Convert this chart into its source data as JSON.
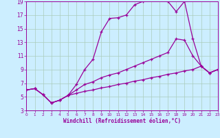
{
  "xlabel": "Windchill (Refroidissement éolien,°C)",
  "bg_color": "#cceeff",
  "grid_color": "#aaccbb",
  "line_color": "#990099",
  "axis_bg": "#9999cc",
  "xmin": 0,
  "xmax": 23,
  "ymin": 3,
  "ymax": 19,
  "yticks": [
    3,
    5,
    7,
    9,
    11,
    13,
    15,
    17,
    19
  ],
  "xticks": [
    0,
    1,
    2,
    3,
    4,
    5,
    6,
    7,
    8,
    9,
    10,
    11,
    12,
    13,
    14,
    15,
    16,
    17,
    18,
    19,
    20,
    21,
    22,
    23
  ],
  "c1x": [
    0,
    1,
    2,
    3,
    4,
    5,
    6,
    7,
    8,
    9,
    10,
    11,
    12,
    13,
    14,
    15,
    16,
    17,
    18,
    19,
    20,
    21,
    22,
    23
  ],
  "c1y": [
    6.0,
    6.2,
    5.3,
    4.1,
    4.5,
    5.2,
    6.8,
    9.0,
    10.5,
    14.5,
    16.5,
    16.6,
    17.0,
    18.5,
    19.0,
    19.2,
    19.2,
    19.0,
    17.5,
    19.0,
    13.5,
    9.5,
    8.5,
    9.0
  ],
  "c2x": [
    0,
    1,
    2,
    3,
    4,
    5,
    6,
    7,
    8,
    9,
    10,
    11,
    12,
    13,
    14,
    15,
    16,
    17,
    18,
    19,
    20,
    21,
    22,
    23
  ],
  "c2y": [
    6.0,
    6.2,
    5.3,
    4.1,
    4.5,
    5.2,
    6.0,
    6.8,
    7.2,
    7.8,
    8.2,
    8.5,
    9.0,
    9.5,
    10.0,
    10.5,
    11.0,
    11.5,
    13.5,
    13.3,
    11.0,
    9.5,
    8.5,
    9.0
  ],
  "c3x": [
    0,
    1,
    2,
    3,
    4,
    5,
    6,
    7,
    8,
    9,
    10,
    11,
    12,
    13,
    14,
    15,
    16,
    17,
    18,
    19,
    20,
    21,
    22,
    23
  ],
  "c3y": [
    6.0,
    6.2,
    5.3,
    4.1,
    4.5,
    5.2,
    5.5,
    5.8,
    6.0,
    6.3,
    6.5,
    6.8,
    7.0,
    7.3,
    7.5,
    7.8,
    8.0,
    8.3,
    8.5,
    8.8,
    9.0,
    9.5,
    8.5,
    9.0
  ]
}
